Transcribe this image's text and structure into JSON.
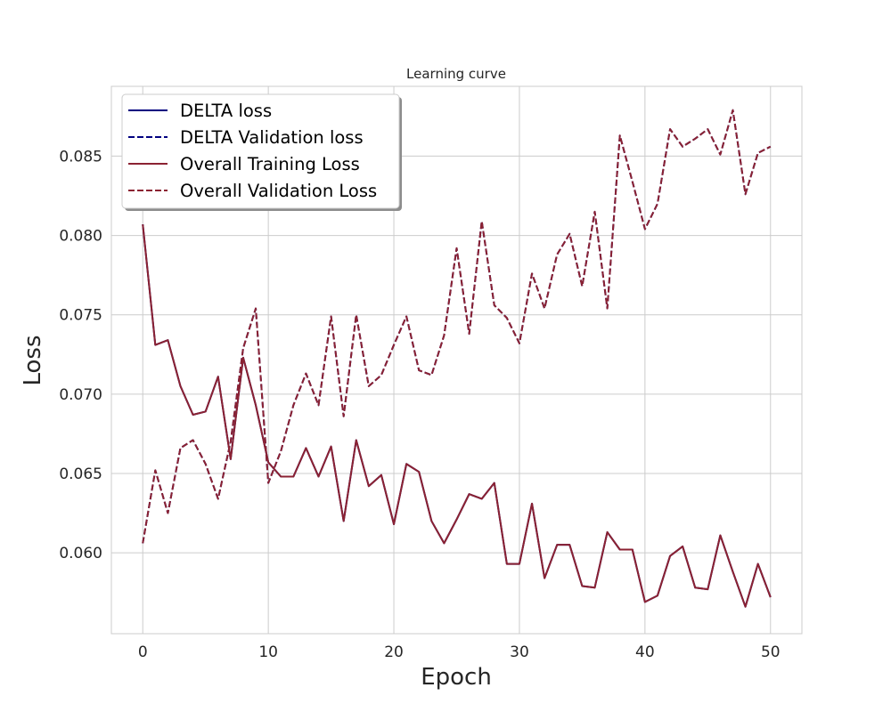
{
  "chart_data": {
    "type": "line",
    "title": "Learning curve",
    "xlabel": "Epoch",
    "ylabel": "Loss",
    "xlim": [
      -2.5,
      52.5
    ],
    "ylim": [
      0.0549,
      0.0894
    ],
    "xticks": [
      0,
      10,
      20,
      30,
      40,
      50
    ],
    "yticks": [
      0.06,
      0.065,
      0.07,
      0.075,
      0.08,
      0.085
    ],
    "ytick_labels": [
      "0.060",
      "0.065",
      "0.070",
      "0.075",
      "0.080",
      "0.085"
    ],
    "grid": true,
    "legend_position": "top-left",
    "colors": {
      "delta": "#000080",
      "overall": "#8b2232"
    },
    "x": [
      0,
      1,
      2,
      3,
      4,
      5,
      6,
      7,
      8,
      9,
      10,
      11,
      12,
      13,
      14,
      15,
      16,
      17,
      18,
      19,
      20,
      21,
      22,
      23,
      24,
      25,
      26,
      27,
      28,
      29,
      30,
      31,
      32,
      33,
      34,
      35,
      36,
      37,
      38,
      39,
      40,
      41,
      42,
      43,
      44,
      45,
      46,
      47,
      48,
      49,
      50
    ],
    "series": [
      {
        "name": "DELTA loss",
        "style": "solid",
        "color": "#000080",
        "values": [
          0.0807,
          0.0731,
          0.0734,
          0.0705,
          0.0687,
          0.0689,
          0.0711,
          0.0659,
          0.0723,
          0.0693,
          0.0657,
          0.0648,
          0.0648,
          0.0666,
          0.0648,
          0.0667,
          0.062,
          0.0671,
          0.0642,
          0.0649,
          0.0618,
          0.0656,
          0.0651,
          0.062,
          0.0606,
          0.0621,
          0.0637,
          0.0634,
          0.0644,
          0.0593,
          0.0593,
          0.0631,
          0.0584,
          0.0605,
          0.0605,
          0.0579,
          0.0578,
          0.0613,
          0.0602,
          0.0602,
          0.0569,
          0.0573,
          0.0598,
          0.0604,
          0.0578,
          0.0577,
          0.0611,
          0.0588,
          0.0566,
          0.0593,
          0.0572
        ]
      },
      {
        "name": "DELTA Validation loss",
        "style": "dashed",
        "color": "#000080",
        "values": [
          0.0606,
          0.0652,
          0.0625,
          0.0666,
          0.0671,
          0.0656,
          0.0634,
          0.067,
          0.0729,
          0.0754,
          0.0644,
          0.0664,
          0.0693,
          0.0713,
          0.0693,
          0.0749,
          0.0686,
          0.075,
          0.0705,
          0.0712,
          0.0731,
          0.0749,
          0.0715,
          0.0712,
          0.0737,
          0.0792,
          0.0738,
          0.0809,
          0.0756,
          0.0748,
          0.0732,
          0.0776,
          0.0754,
          0.0788,
          0.0801,
          0.0768,
          0.0815,
          0.0754,
          0.0863,
          0.0834,
          0.0804,
          0.082,
          0.0867,
          0.0856,
          0.0861,
          0.0867,
          0.0851,
          0.0879,
          0.0826,
          0.0852,
          0.0856
        ]
      },
      {
        "name": "Overall Training Loss",
        "style": "solid",
        "color": "#8b2232",
        "values": [
          0.0807,
          0.0731,
          0.0734,
          0.0705,
          0.0687,
          0.0689,
          0.0711,
          0.0659,
          0.0723,
          0.0693,
          0.0657,
          0.0648,
          0.0648,
          0.0666,
          0.0648,
          0.0667,
          0.062,
          0.0671,
          0.0642,
          0.0649,
          0.0618,
          0.0656,
          0.0651,
          0.062,
          0.0606,
          0.0621,
          0.0637,
          0.0634,
          0.0644,
          0.0593,
          0.0593,
          0.0631,
          0.0584,
          0.0605,
          0.0605,
          0.0579,
          0.0578,
          0.0613,
          0.0602,
          0.0602,
          0.0569,
          0.0573,
          0.0598,
          0.0604,
          0.0578,
          0.0577,
          0.0611,
          0.0588,
          0.0566,
          0.0593,
          0.0572
        ]
      },
      {
        "name": "Overall Validation Loss",
        "style": "dashed",
        "color": "#8b2232",
        "values": [
          0.0606,
          0.0652,
          0.0625,
          0.0666,
          0.0671,
          0.0656,
          0.0634,
          0.067,
          0.0729,
          0.0754,
          0.0644,
          0.0664,
          0.0693,
          0.0713,
          0.0693,
          0.0749,
          0.0686,
          0.075,
          0.0705,
          0.0712,
          0.0731,
          0.0749,
          0.0715,
          0.0712,
          0.0737,
          0.0792,
          0.0738,
          0.0809,
          0.0756,
          0.0748,
          0.0732,
          0.0776,
          0.0754,
          0.0788,
          0.0801,
          0.0768,
          0.0815,
          0.0754,
          0.0863,
          0.0834,
          0.0804,
          0.082,
          0.0867,
          0.0856,
          0.0861,
          0.0867,
          0.0851,
          0.0879,
          0.0826,
          0.0852,
          0.0856
        ]
      }
    ]
  }
}
